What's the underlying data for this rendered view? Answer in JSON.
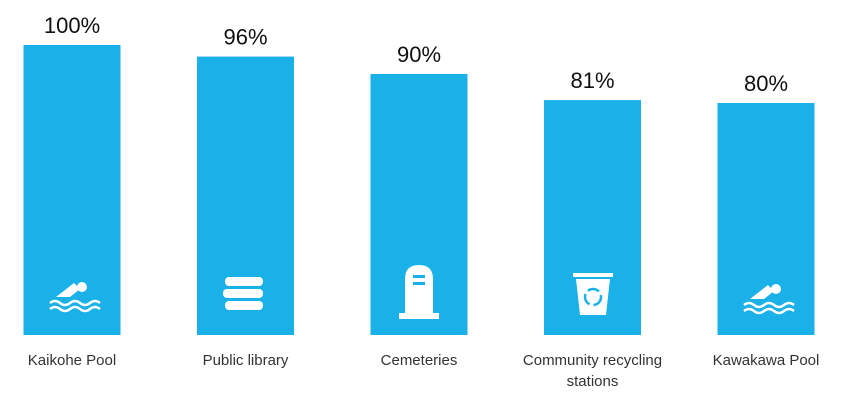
{
  "chart_data": {
    "type": "bar",
    "categories": [
      "Kaikohe Pool",
      "Public library",
      "Cemeteries",
      "Community recycling stations",
      "Kawakawa Pool"
    ],
    "values": [
      100,
      96,
      90,
      81,
      80
    ],
    "value_labels": [
      "100%",
      "96%",
      "90%",
      "81%",
      "80%"
    ],
    "color": "#1ab0e8",
    "ylim": [
      0,
      100
    ]
  }
}
